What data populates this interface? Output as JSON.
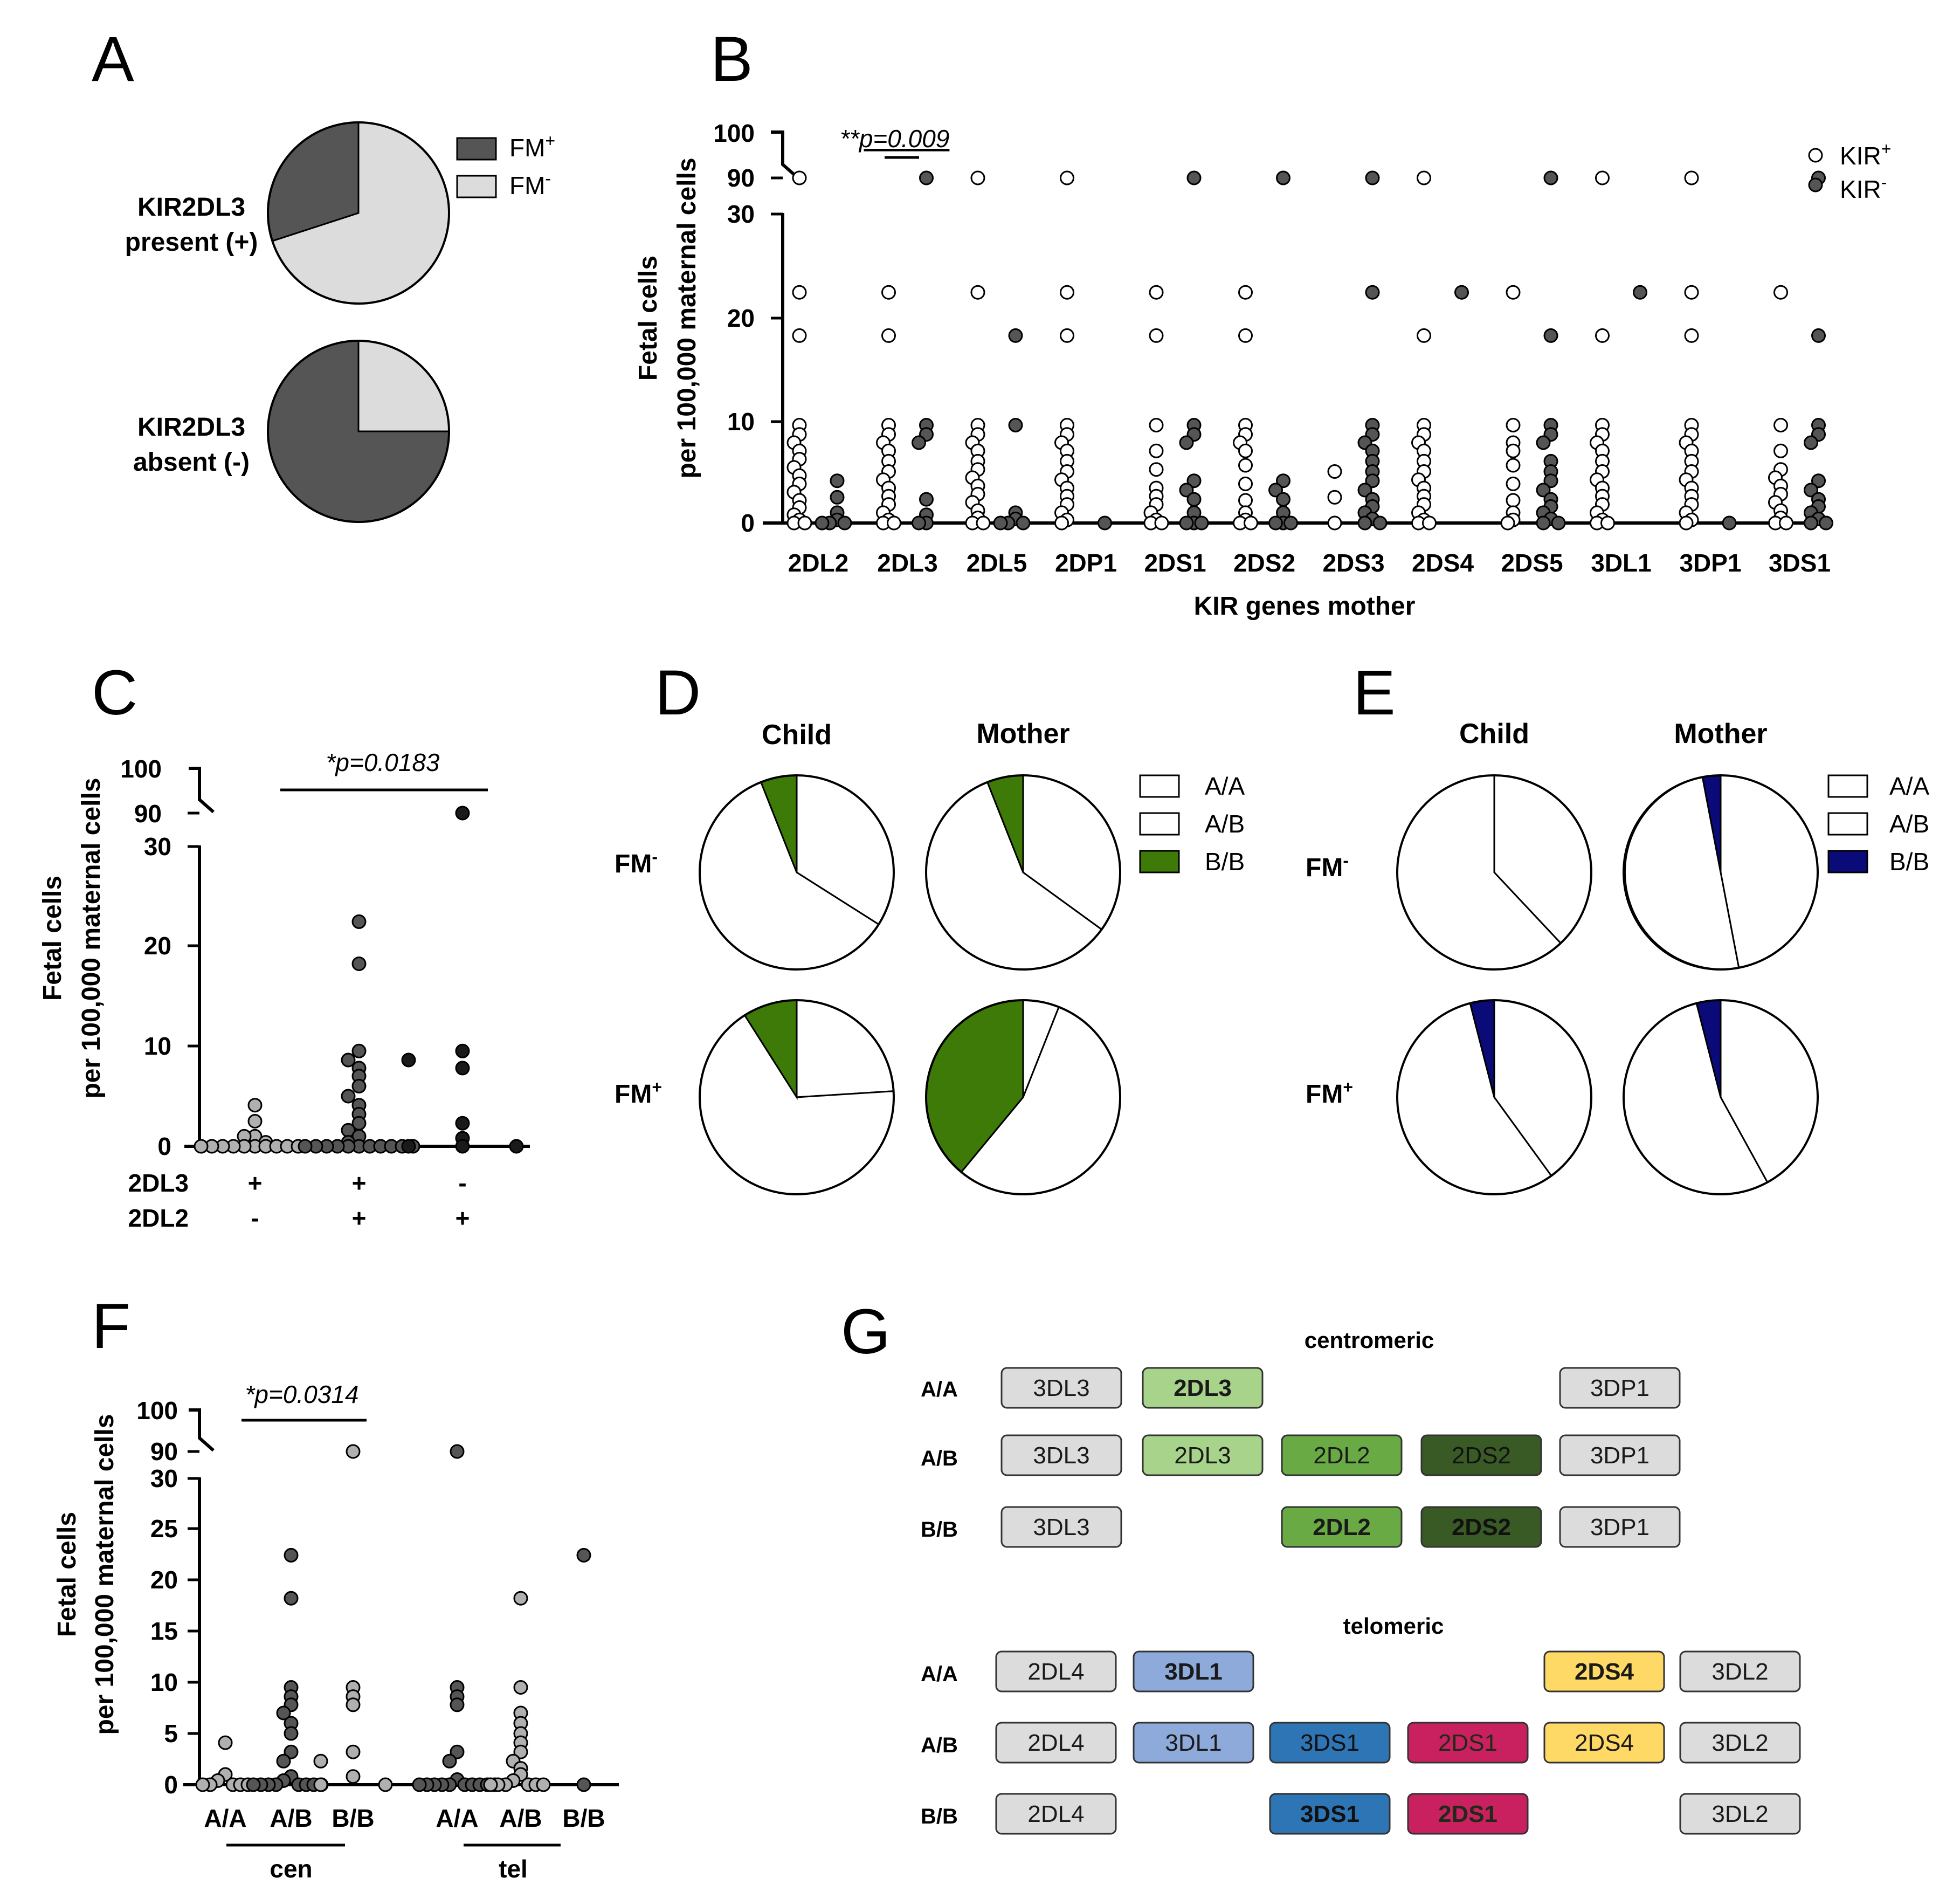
{
  "colors": {
    "dark": "#555555",
    "light": "#dcdcdc",
    "grey": "#b0b0b0",
    "black": "#1a1a1a",
    "green": "#3d7a08",
    "navy": "#0a0a78",
    "white": "#ffffff"
  },
  "panel_letters": [
    "A",
    "B",
    "C",
    "D",
    "E",
    "F",
    "G"
  ],
  "chart_data": [
    {
      "id": "A",
      "type": "pie",
      "legend": [
        {
          "label": "FM",
          "sup": "+",
          "color": "dark"
        },
        {
          "label": "FM",
          "sup": "-",
          "color": "light"
        }
      ],
      "pies": [
        {
          "label_line1": "KIR2DL3",
          "label_line2": "present (+)",
          "slices": [
            {
              "name": "FM+",
              "value": 30
            },
            {
              "name": "FM-",
              "value": 70
            }
          ]
        },
        {
          "label_line1": "KIR2DL3",
          "label_line2": "absent (-)",
          "slices": [
            {
              "name": "FM+",
              "value": 75
            },
            {
              "name": "FM-",
              "value": 25
            }
          ]
        }
      ]
    },
    {
      "id": "B",
      "type": "scatter",
      "ylabel_line1": "Fetal cells",
      "ylabel_line2": "per 100,000 maternal cells",
      "xlabel": "KIR genes mother",
      "yticks_lower": [
        "0",
        "10",
        "20",
        "30"
      ],
      "yticks_upper": [
        "90",
        "100"
      ],
      "legend": [
        {
          "label": "KIR",
          "sup": "+"
        },
        {
          "label": "KIR",
          "sup": "-"
        }
      ],
      "annotation": {
        "stars": "**",
        "text": "p=0.009"
      },
      "categories": [
        "2DL2",
        "2DL3",
        "2DL5",
        "2DP1",
        "2DS1",
        "2DS2",
        "2DS3",
        "2DS4",
        "2DS5",
        "3DL1",
        "3DP1",
        "3DS1"
      ],
      "series": [
        {
          "name": "KIR+",
          "values": [
            [
              90,
              22.4,
              18.2,
              9.5,
              8.6,
              7.8,
              7,
              6.2,
              5.4,
              4.6,
              3.8,
              3,
              2.2,
              1.5,
              0.8,
              0.3,
              0,
              0
            ],
            [
              22.4,
              18.2,
              9.5,
              8.6,
              7.8,
              7,
              6,
              5,
              4.2,
              3.4,
              2.6,
              1.8,
              1,
              0.3,
              0,
              0
            ],
            [
              90,
              22.4,
              9.5,
              8.6,
              7.8,
              7,
              6,
              5.2,
              4.4,
              3.6,
              2.8,
              2,
              1.2,
              0.5,
              0,
              0
            ],
            [
              90,
              22.4,
              18.2,
              9.5,
              8.6,
              7.8,
              7,
              6,
              5,
              4.2,
              3.4,
              2.6,
              1.8,
              1,
              0.3,
              0
            ],
            [
              22.4,
              18.2,
              9.5,
              7,
              5.2,
              3.4,
              2.6,
              1.8,
              1,
              0.3,
              0,
              0
            ],
            [
              22.4,
              18.2,
              9.5,
              8.6,
              7.8,
              7,
              5.6,
              3.8,
              2.2,
              1,
              0.3,
              0,
              0
            ],
            [
              5,
              2.5,
              0
            ],
            [
              90,
              18.2,
              9.5,
              8.6,
              7.8,
              7,
              6,
              5,
              4.2,
              3.4,
              2.6,
              1.8,
              1,
              0.3,
              0,
              0
            ],
            [
              22.4,
              9.5,
              7.8,
              7,
              5.6,
              3.8,
              2.2,
              1,
              0.3,
              0
            ],
            [
              90,
              18.2,
              9.5,
              8.6,
              7.8,
              7,
              6,
              5,
              4.2,
              3.4,
              2.6,
              1.8,
              1,
              0.3,
              0,
              0
            ],
            [
              90,
              22.4,
              18.2,
              9.5,
              8.6,
              7.8,
              7,
              6,
              5,
              4.2,
              3.4,
              2.6,
              1.8,
              1,
              0.3,
              0
            ],
            [
              22.4,
              9.5,
              7,
              5.2,
              4.4,
              3.6,
              2.8,
              2,
              1.2,
              0.5,
              0,
              0
            ]
          ]
        },
        {
          "name": "KIR-",
          "values": [
            [
              4.1,
              2.5,
              1,
              0.3,
              0,
              0,
              0
            ],
            [
              90,
              9.5,
              8.6,
              7.8,
              2.3,
              0.8,
              0,
              0
            ],
            [
              18.2,
              9.5,
              1,
              0.4,
              0,
              0,
              0
            ],
            [
              0
            ],
            [
              90,
              9.5,
              8.6,
              7.8,
              4.1,
              3.2,
              2.3,
              1,
              0,
              0,
              0
            ],
            [
              90,
              4.1,
              3.2,
              2.3,
              1,
              0,
              0,
              0
            ],
            [
              90,
              22.4,
              9.5,
              8.6,
              7.8,
              7,
              6,
              5,
              4.1,
              3.2,
              2.3,
              1.6,
              1,
              0.4,
              0,
              0
            ],
            [
              22.4
            ],
            [
              90,
              18.2,
              9.5,
              8.6,
              7.8,
              6,
              5,
              4.1,
              3.2,
              2.3,
              1.6,
              1,
              0.4,
              0,
              0
            ],
            [
              22.4
            ],
            [
              0
            ],
            [
              90,
              18.2,
              9.5,
              8.6,
              7.8,
              4.1,
              3.2,
              2.3,
              1.6,
              1,
              0.4,
              0,
              0
            ]
          ]
        }
      ]
    },
    {
      "id": "C",
      "type": "scatter",
      "ylabel_line1": "Fetal cells",
      "ylabel_line2": "per 100,000 maternal cells",
      "yticks_lower": [
        "0",
        "10",
        "20",
        "30"
      ],
      "yticks_upper": [
        "90",
        "100"
      ],
      "annotation": {
        "text": "*p=0.0183"
      },
      "row_labels": [
        "2DL3",
        "2DL2"
      ],
      "groups": [
        {
          "signs": [
            "+",
            "-"
          ],
          "color": "grey",
          "values": [
            4.1,
            2.5,
            1,
            1,
            0.4,
            0,
            0,
            0,
            0,
            0,
            0,
            0,
            0,
            0,
            0
          ]
        },
        {
          "signs": [
            "+",
            "+"
          ],
          "color": "dark",
          "values": [
            22.4,
            18.2,
            9.5,
            8.6,
            7.8,
            7,
            6,
            5,
            4.1,
            3.2,
            2.3,
            1.6,
            1,
            0.4,
            0,
            0,
            0,
            0,
            0,
            0,
            0,
            0,
            0,
            0,
            0
          ]
        },
        {
          "signs": [
            "-",
            "+"
          ],
          "color": "black",
          "values": [
            90,
            9.5,
            8.6,
            7.8,
            2.3,
            0.8,
            0,
            0,
            0
          ]
        }
      ]
    },
    {
      "id": "D",
      "type": "pie",
      "columns": [
        "Child",
        "Mother"
      ],
      "rows": [
        {
          "label": "FM",
          "sup": "-"
        },
        {
          "label": "FM",
          "sup": "+"
        }
      ],
      "legend": [
        "A/A",
        "A/B",
        "B/B"
      ],
      "accent": "green",
      "pies": [
        [
          {
            "A/A": 34,
            "A/B": 60,
            "B/B": 6
          },
          {
            "A/A": 35,
            "A/B": 59,
            "B/B": 6
          }
        ],
        [
          {
            "A/A": 24,
            "A/B": 67,
            "B/B": 9
          },
          {
            "A/A": 6,
            "A/B": 55,
            "B/B": 39
          }
        ]
      ]
    },
    {
      "id": "E",
      "type": "pie",
      "columns": [
        "Child",
        "Mother"
      ],
      "rows": [
        {
          "label": "FM",
          "sup": "-"
        },
        {
          "label": "FM",
          "sup": "+"
        }
      ],
      "legend": [
        "A/A",
        "A/B",
        "B/B"
      ],
      "accent": "navy",
      "pies": [
        [
          {
            "A/A": 38,
            "A/B": 62,
            "B/B": 0
          },
          {
            "A/A": 47,
            "A/B": 50,
            "B/B": 3
          }
        ],
        [
          {
            "A/A": 40,
            "A/B": 56,
            "B/B": 4
          },
          {
            "A/A": 42,
            "A/B": 54,
            "B/B": 4
          }
        ]
      ]
    },
    {
      "id": "F",
      "type": "scatter",
      "ylabel_line1": "Fetal cells",
      "ylabel_line2": "per 100,000 maternal cells",
      "yticks_lower": [
        "0",
        "5",
        "10",
        "15",
        "20",
        "25",
        "30"
      ],
      "yticks_upper": [
        "90",
        "100"
      ],
      "annotation": {
        "text": "*p=0.0314"
      },
      "group_labels": [
        "cen",
        "tel"
      ],
      "groups": [
        {
          "label": "A/A",
          "color": "grey",
          "values": [
            4.1,
            1,
            0.4,
            0,
            0,
            0,
            0,
            0
          ]
        },
        {
          "label": "A/B",
          "color": "dark",
          "values": [
            22.4,
            18.2,
            9.5,
            8.6,
            7.8,
            7,
            6,
            5,
            3.2,
            2.3,
            0.8,
            0.4,
            0,
            0,
            0,
            0,
            0,
            0,
            0,
            0
          ]
        },
        {
          "label": "B/B",
          "color": "grey",
          "values": [
            90,
            9.5,
            8.6,
            7.8,
            3.2,
            2.3,
            0.8,
            0,
            0
          ]
        },
        {
          "label": "A/A",
          "color": "dark",
          "values": [
            90,
            9.5,
            8.6,
            7.8,
            3.2,
            2.3,
            0.5,
            0,
            0,
            0,
            0,
            0,
            0,
            0,
            0,
            0,
            0
          ]
        },
        {
          "label": "A/B",
          "color": "grey",
          "values": [
            18.2,
            9.5,
            7,
            6,
            5,
            4.1,
            3.2,
            2.3,
            1.6,
            1,
            0.4,
            0,
            0,
            0,
            0,
            0,
            0
          ]
        },
        {
          "label": "B/B",
          "color": "dark",
          "values": [
            22.4,
            0
          ]
        }
      ]
    }
  ],
  "panel_g": {
    "centromeric": {
      "title": "centromeric",
      "rows": [
        {
          "label": "A/A",
          "genes": [
            {
              "slot": 0,
              "text": "3DL3",
              "color": "#dcdcdc",
              "bold": false
            },
            {
              "slot": 1,
              "text": "2DL3",
              "color": "#a7d38a",
              "bold": true
            },
            {
              "slot": 4,
              "text": "3DP1",
              "color": "#dcdcdc",
              "bold": false
            }
          ]
        },
        {
          "label": "A/B",
          "genes": [
            {
              "slot": 0,
              "text": "3DL3",
              "color": "#dcdcdc",
              "bold": false
            },
            {
              "slot": 1,
              "text": "2DL3",
              "color": "#a7d38a",
              "bold": false
            },
            {
              "slot": 2,
              "text": "2DL2",
              "color": "#6aaa45",
              "bold": false
            },
            {
              "slot": 3,
              "text": "2DS2",
              "color": "#3a5a25",
              "bold": false
            },
            {
              "slot": 4,
              "text": "3DP1",
              "color": "#dcdcdc",
              "bold": false
            }
          ]
        },
        {
          "label": "B/B",
          "genes": [
            {
              "slot": 0,
              "text": "3DL3",
              "color": "#dcdcdc",
              "bold": false
            },
            {
              "slot": 2,
              "text": "2DL2",
              "color": "#6aaa45",
              "bold": true
            },
            {
              "slot": 3,
              "text": "2DS2",
              "color": "#3a5a25",
              "bold": true
            },
            {
              "slot": 4,
              "text": "3DP1",
              "color": "#dcdcdc",
              "bold": false
            }
          ]
        }
      ]
    },
    "telomeric": {
      "title": "telomeric",
      "rows": [
        {
          "label": "A/A",
          "genes": [
            {
              "slot": 0,
              "text": "2DL4",
              "color": "#dcdcdc",
              "bold": false
            },
            {
              "slot": 1,
              "text": "3DL1",
              "color": "#8eaadb",
              "bold": true
            },
            {
              "slot": 4,
              "text": "2DS4",
              "color": "#ffd966",
              "bold": true
            },
            {
              "slot": 5,
              "text": "3DL2",
              "color": "#dcdcdc",
              "bold": false
            }
          ]
        },
        {
          "label": "A/B",
          "genes": [
            {
              "slot": 0,
              "text": "2DL4",
              "color": "#dcdcdc",
              "bold": false
            },
            {
              "slot": 1,
              "text": "3DL1",
              "color": "#8eaadb",
              "bold": false
            },
            {
              "slot": 2,
              "text": "3DS1",
              "color": "#2e75b6",
              "bold": false
            },
            {
              "slot": 3,
              "text": "2DS1",
              "color": "#c9205f",
              "bold": false
            },
            {
              "slot": 4,
              "text": "2DS4",
              "color": "#ffd966",
              "bold": false
            },
            {
              "slot": 5,
              "text": "3DL2",
              "color": "#dcdcdc",
              "bold": false
            }
          ]
        },
        {
          "label": "B/B",
          "genes": [
            {
              "slot": 0,
              "text": "2DL4",
              "color": "#dcdcdc",
              "bold": false
            },
            {
              "slot": 2,
              "text": "3DS1",
              "color": "#2e75b6",
              "bold": true
            },
            {
              "slot": 3,
              "text": "2DS1",
              "color": "#c9205f",
              "bold": true
            },
            {
              "slot": 5,
              "text": "3DL2",
              "color": "#dcdcdc",
              "bold": false
            }
          ]
        }
      ]
    }
  }
}
